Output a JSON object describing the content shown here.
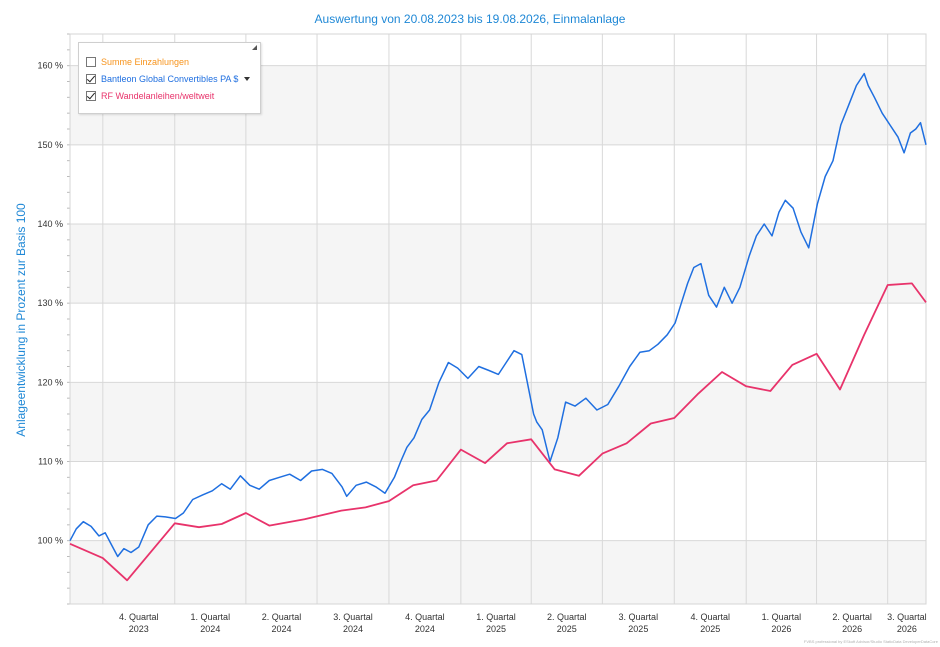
{
  "chart_data": {
    "type": "line",
    "title": "Auswertung von 20.08.2023 bis 19.08.2026, Einmalanlage",
    "ylabel": "Anlageentwicklung  in Prozent zur Basis 100",
    "ylim": [
      92,
      164
    ],
    "yticks": [
      100,
      110,
      120,
      130,
      140,
      150,
      160
    ],
    "ytick_labels": [
      "100 %",
      "110 %",
      "120 %",
      "130 %",
      "140 %",
      "150 %",
      "160 %"
    ],
    "x_range": [
      "2023-08-20",
      "2026-08-19"
    ],
    "xtick_labels": [
      {
        "line1": "4. Quartal",
        "line2": "2023"
      },
      {
        "line1": "1. Quartal",
        "line2": "2024"
      },
      {
        "line1": "2. Quartal",
        "line2": "2024"
      },
      {
        "line1": "3. Quartal",
        "line2": "2024"
      },
      {
        "line1": "4. Quartal",
        "line2": "2024"
      },
      {
        "line1": "1. Quartal",
        "line2": "2025"
      },
      {
        "line1": "2. Quartal",
        "line2": "2025"
      },
      {
        "line1": "3. Quartal",
        "line2": "2025"
      },
      {
        "line1": "4. Quartal",
        "line2": "2025"
      },
      {
        "line1": "1. Quartal",
        "line2": "2026"
      },
      {
        "line1": "2. Quartal",
        "line2": "2026"
      },
      {
        "line1": "3. Quartal",
        "line2": "2026"
      }
    ],
    "grid": true,
    "legend_position": "top-left",
    "series": [
      {
        "name": "Summe Einzahlungen",
        "checked": false,
        "color": "#f7941d",
        "x": [],
        "y": []
      },
      {
        "name": "Bantleon Global Convertibles PA $",
        "checked": true,
        "dropdown": true,
        "color": "#1f6fe0",
        "x": [
          "2023-08-20",
          "2023-08-28",
          "2023-09-06",
          "2023-09-16",
          "2023-09-26",
          "2023-10-04",
          "2023-10-12",
          "2023-10-20",
          "2023-10-28",
          "2023-11-06",
          "2023-11-16",
          "2023-11-28",
          "2023-12-09",
          "2023-12-20",
          "2024-01-02",
          "2024-01-12",
          "2024-01-24",
          "2024-02-06",
          "2024-02-18",
          "2024-03-01",
          "2024-03-12",
          "2024-03-25",
          "2024-04-06",
          "2024-04-18",
          "2024-05-01",
          "2024-05-14",
          "2024-05-27",
          "2024-06-10",
          "2024-06-24",
          "2024-07-08",
          "2024-07-20",
          "2024-08-02",
          "2024-08-08",
          "2024-08-20",
          "2024-09-02",
          "2024-09-14",
          "2024-09-26",
          "2024-10-08",
          "2024-10-16",
          "2024-10-24",
          "2024-11-02",
          "2024-11-12",
          "2024-11-22",
          "2024-12-04",
          "2024-12-16",
          "2024-12-28",
          "2025-01-10",
          "2025-01-24",
          "2025-02-06",
          "2025-02-18",
          "2025-02-28",
          "2025-03-10",
          "2025-03-20",
          "2025-03-28",
          "2025-04-04",
          "2025-04-08",
          "2025-04-15",
          "2025-04-25",
          "2025-05-05",
          "2025-05-15",
          "2025-05-27",
          "2025-06-10",
          "2025-06-24",
          "2025-07-08",
          "2025-07-22",
          "2025-08-05",
          "2025-08-18",
          "2025-08-30",
          "2025-09-10",
          "2025-09-22",
          "2025-10-02",
          "2025-10-10",
          "2025-10-18",
          "2025-10-26",
          "2025-11-04",
          "2025-11-14",
          "2025-11-24",
          "2025-12-04",
          "2025-12-14",
          "2025-12-24",
          "2026-01-05",
          "2026-01-14",
          "2026-01-24",
          "2026-02-03",
          "2026-02-12",
          "2026-02-20",
          "2026-03-02",
          "2026-03-12",
          "2026-03-22",
          "2026-04-02",
          "2026-04-12",
          "2026-04-22",
          "2026-05-02",
          "2026-05-12",
          "2026-05-22",
          "2026-06-01",
          "2026-06-06",
          "2026-06-14",
          "2026-06-24",
          "2026-07-04",
          "2026-07-14",
          "2026-07-22",
          "2026-07-30",
          "2026-08-06",
          "2026-08-12",
          "2026-08-19"
        ],
        "y": [
          100,
          101.5,
          102.4,
          101.8,
          100.6,
          101.0,
          99.5,
          98.0,
          99.0,
          98.5,
          99.2,
          102.0,
          103.1,
          103.0,
          102.8,
          103.5,
          105.2,
          105.8,
          106.3,
          107.2,
          106.5,
          108.2,
          107.0,
          106.5,
          107.6,
          108.0,
          108.4,
          107.6,
          108.8,
          109.0,
          108.5,
          106.8,
          105.6,
          107.0,
          107.4,
          106.8,
          106.0,
          108.0,
          110.0,
          111.8,
          113.0,
          115.3,
          116.5,
          120.0,
          122.5,
          121.8,
          120.5,
          122.0,
          121.5,
          121.0,
          122.5,
          124.0,
          123.5,
          119.5,
          116.0,
          115.0,
          114.0,
          110.0,
          113.0,
          117.5,
          117.0,
          118.0,
          116.5,
          117.2,
          119.5,
          122.0,
          123.8,
          124.0,
          124.8,
          126.0,
          127.5,
          130.0,
          132.5,
          134.5,
          135.0,
          131.0,
          129.5,
          132.0,
          130.0,
          132.0,
          136.0,
          138.5,
          140.0,
          138.5,
          141.5,
          143.0,
          142.0,
          139.0,
          137.0,
          142.5,
          146.0,
          148.0,
          152.5,
          155.0,
          157.5,
          159.0,
          157.5,
          156.0,
          154.0,
          152.5,
          151.0,
          149.0,
          151.5,
          152.0,
          152.8,
          150.0
        ]
      },
      {
        "name": "RF Wandelanleihen/weltweit",
        "checked": true,
        "color": "#e8336b",
        "x": [
          "2023-08-20",
          "2023-10-01",
          "2023-11-01",
          "2024-01-01",
          "2024-02-01",
          "2024-03-01",
          "2024-04-01",
          "2024-05-01",
          "2024-06-15",
          "2024-08-01",
          "2024-09-01",
          "2024-10-01",
          "2024-11-01",
          "2024-12-01",
          "2025-01-01",
          "2025-02-01",
          "2025-03-01",
          "2025-04-01",
          "2025-05-01",
          "2025-06-01",
          "2025-07-01",
          "2025-08-01",
          "2025-09-01",
          "2025-10-01",
          "2025-11-01",
          "2025-12-01",
          "2026-01-01",
          "2026-02-01",
          "2026-03-01",
          "2026-04-01",
          "2026-05-01",
          "2026-06-01",
          "2026-07-01",
          "2026-08-01",
          "2026-08-19"
        ],
        "y": [
          99.6,
          97.8,
          95.0,
          102.2,
          101.7,
          102.1,
          103.5,
          101.9,
          102.7,
          103.8,
          104.2,
          105.0,
          107.0,
          107.6,
          111.5,
          109.8,
          112.3,
          112.8,
          109.0,
          108.2,
          111.0,
          112.3,
          114.8,
          115.5,
          118.6,
          121.3,
          119.5,
          118.9,
          122.2,
          123.6,
          119.1,
          126.0,
          132.3,
          132.5,
          130.1
        ]
      }
    ]
  },
  "footer_text": "FVBS professional by ESkoft Advisor/Studio StaticData DeveloperDataCore"
}
